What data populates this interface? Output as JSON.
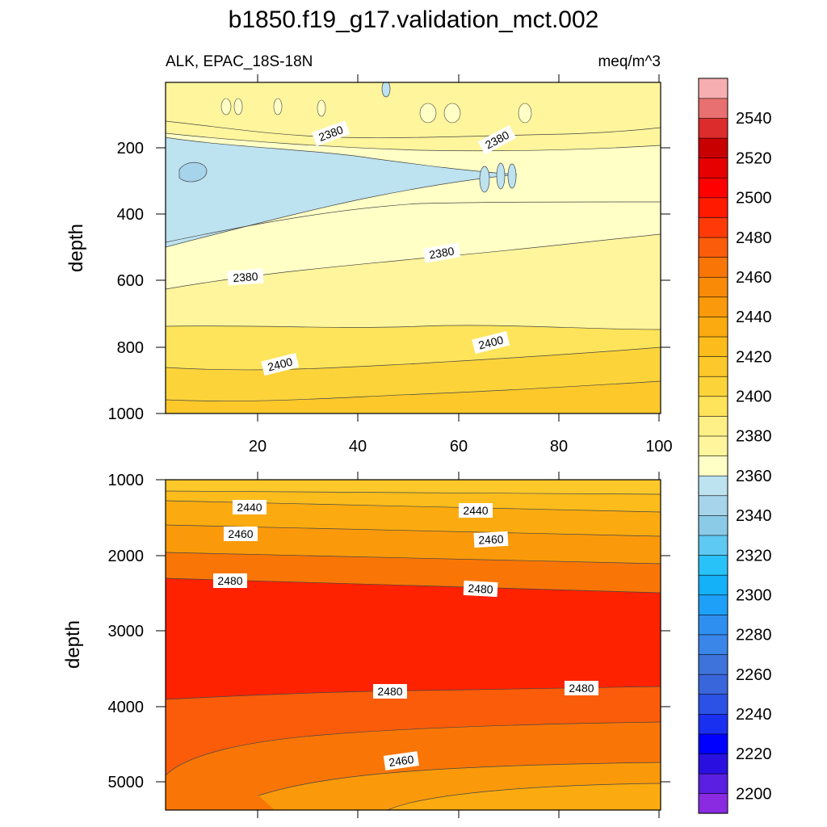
{
  "chart_data": {
    "type": "contour",
    "title": "b1850.f19_g17.validation_mct.002",
    "variable_label": "ALK, EPAC_18S-18N",
    "units": "meq/m^3",
    "ylabel": "depth",
    "colorbar": {
      "levels": [
        2200,
        2210,
        2220,
        2230,
        2240,
        2250,
        2260,
        2270,
        2280,
        2290,
        2300,
        2310,
        2320,
        2330,
        2340,
        2350,
        2360,
        2370,
        2380,
        2390,
        2400,
        2410,
        2420,
        2430,
        2440,
        2450,
        2460,
        2470,
        2480,
        2490,
        2500,
        2510,
        2520,
        2530,
        2540,
        2550
      ],
      "tick_labels": [
        "2200",
        "2220",
        "2240",
        "2260",
        "2280",
        "2300",
        "2320",
        "2340",
        "2360",
        "2380",
        "2400",
        "2420",
        "2440",
        "2460",
        "2480",
        "2500",
        "2520",
        "2540"
      ],
      "colors": [
        "#8a2be2",
        "#5a1fe0",
        "#2a10e0",
        "#0000ff",
        "#1a30f0",
        "#2b52e4",
        "#3a66dc",
        "#3d73da",
        "#3a86e8",
        "#2f8ff0",
        "#1ea0f8",
        "#14b0f8",
        "#28c2f8",
        "#5ec9f2",
        "#8ccbe8",
        "#a6d4ea",
        "#bde2f0",
        "#ffffc6",
        "#fff59c",
        "#fef086",
        "#fde45a",
        "#fcd43a",
        "#fcc82a",
        "#fcbc1c",
        "#fbab10",
        "#fa9a0a",
        "#f98a08",
        "#f97606",
        "#fb5c0a",
        "#ff3a08",
        "#ff1a00",
        "#ff0000",
        "#e60000",
        "#c80000",
        "#dc2c2c",
        "#e87070",
        "#f6aeb0"
      ]
    },
    "upper_panel": {
      "x_range": [
        1,
        101
      ],
      "x_ticks": [
        "20",
        "40",
        "60",
        "80",
        "100"
      ],
      "y_range": [
        5,
        1000
      ],
      "y_ticks": [
        "200",
        "400",
        "600",
        "800",
        "1000"
      ],
      "contour_labels": [
        "2380",
        "2380",
        "2380",
        "2380",
        "2400",
        "2400"
      ]
    },
    "lower_panel": {
      "x_range": [
        1,
        101
      ],
      "y_range": [
        1000,
        5375
      ],
      "y_ticks": [
        "1000",
        "2000",
        "3000",
        "4000",
        "5000"
      ],
      "contour_labels": [
        "2440",
        "2440",
        "2460",
        "2460",
        "2480",
        "2480",
        "2480",
        "2480",
        "2460"
      ]
    }
  }
}
